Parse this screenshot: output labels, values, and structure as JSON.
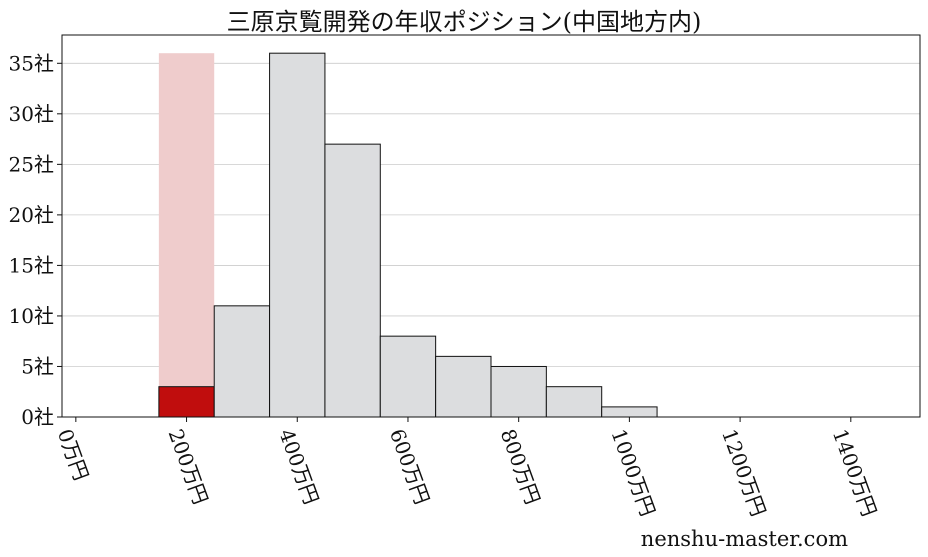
{
  "chart_data": {
    "type": "bar",
    "title": "三原京覧開発の年収ポジション(中国地方内)",
    "x_tick_labels": [
      "0万円",
      "200万円",
      "400万円",
      "600万円",
      "800万円",
      "1000万円",
      "1200万円",
      "1400万円"
    ],
    "x_tick_values": [
      0,
      200,
      400,
      600,
      800,
      1000,
      1200,
      1400
    ],
    "y_tick_labels": [
      "0社",
      "5社",
      "10社",
      "15社",
      "20社",
      "25社",
      "30社",
      "35社"
    ],
    "y_tick_values": [
      0,
      5,
      10,
      15,
      20,
      25,
      30,
      35
    ],
    "xlim": [
      -25,
      1525
    ],
    "ylim": [
      0,
      37.8
    ],
    "bin_width": 100,
    "bins": [
      {
        "center": 200,
        "value": 3,
        "highlight": true
      },
      {
        "center": 300,
        "value": 11
      },
      {
        "center": 400,
        "value": 36
      },
      {
        "center": 500,
        "value": 27
      },
      {
        "center": 600,
        "value": 8
      },
      {
        "center": 700,
        "value": 6
      },
      {
        "center": 800,
        "value": 5
      },
      {
        "center": 900,
        "value": 3
      },
      {
        "center": 1000,
        "value": 1
      }
    ],
    "highlight_band": {
      "center": 200,
      "value": 36
    },
    "colors": {
      "bar_fill": "#dcdddf",
      "bar_edge": "#111111",
      "highlight_fill": "#c00d0d",
      "highlight_band_fill": "#efcccc",
      "grid": "#cccccc"
    },
    "grid": "horizontal"
  },
  "watermark": "nenshu-master.com"
}
